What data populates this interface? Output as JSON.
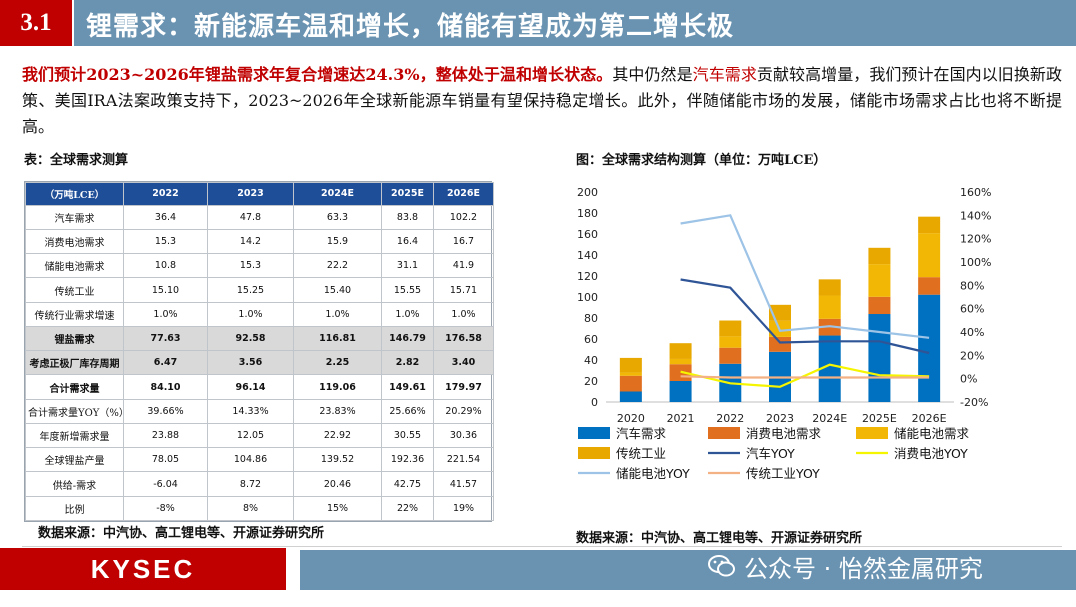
{
  "header": {
    "number": "3.1",
    "title": "锂需求：新能源车温和增长，储能有望成为第二增长极"
  },
  "intro": {
    "bold_red": "我们预计2023~2026年锂盐需求年复合增速达24.3%，整体处于温和增长状态。",
    "text_a": "其中仍然是",
    "highlight": "汽车需求",
    "text_b": "贡献较高增量，我们预计在国内以旧换新政策、美国IRA法案政策支持下，2023~2026年全球新能源车销量有望保持稳定增长。此外，伴随储能市场的发展，储能市场需求占比也将不断提高。"
  },
  "table_caption": "表：全球需求测算",
  "chart_caption": "图：全球需求结构测算（单位：万吨LCE）",
  "table": {
    "headers": [
      "（万吨LCE）",
      "2022",
      "2023",
      "2024E",
      "2025E",
      "2026E"
    ],
    "rows": [
      [
        "汽车需求",
        "36.4",
        "47.8",
        "63.3",
        "83.8",
        "102.2"
      ],
      [
        "消费电池需求",
        "15.3",
        "14.2",
        "15.9",
        "16.4",
        "16.7"
      ],
      [
        "储能电池需求",
        "10.8",
        "15.3",
        "22.2",
        "31.1",
        "41.9"
      ],
      [
        "传统工业",
        "15.10",
        "15.25",
        "15.40",
        "15.55",
        "15.71"
      ],
      [
        "传统行业需求增速",
        "1.0%",
        "1.0%",
        "1.0%",
        "1.0%",
        "1.0%"
      ],
      [
        "锂盐需求",
        "77.63",
        "92.58",
        "116.81",
        "146.79",
        "176.58"
      ],
      [
        "考虑正极厂库存周期",
        "6.47",
        "3.56",
        "2.25",
        "2.82",
        "3.40"
      ],
      [
        "合计需求量",
        "84.10",
        "96.14",
        "119.06",
        "149.61",
        "179.97"
      ],
      [
        "合计需求量YOY（%）",
        "39.66%",
        "14.33%",
        "23.83%",
        "25.66%",
        "20.29%"
      ],
      [
        "年度新增需求量",
        "23.88",
        "12.05",
        "22.92",
        "30.55",
        "30.36"
      ],
      [
        "全球锂盐产量",
        "78.05",
        "104.86",
        "139.52",
        "192.36",
        "221.54"
      ],
      [
        "供给-需求",
        "-6.04",
        "8.72",
        "20.46",
        "42.75",
        "41.57"
      ],
      [
        "比例",
        "-8%",
        "8%",
        "15%",
        "22%",
        "19%"
      ]
    ]
  },
  "source_left": "数据来源：中汽协、高工锂电等、开源证券研究所",
  "source_right": "数据来源：中汽协、高工锂电等、开源证券研究所",
  "chart_data": {
    "type": "bar",
    "stacked": true,
    "categories": [
      "2020",
      "2021",
      "2022",
      "2023",
      "2024E",
      "2025E",
      "2026E"
    ],
    "ylim": [
      0,
      200
    ],
    "yticks": [
      "0",
      "20",
      "40",
      "60",
      "80",
      "100",
      "120",
      "140",
      "160",
      "180",
      "200"
    ],
    "y2lim": [
      -20,
      160
    ],
    "y2ticks": [
      "-20%",
      "0%",
      "20%",
      "40%",
      "60%",
      "80%",
      "100%",
      "120%",
      "140%",
      "160%"
    ],
    "bar_series": [
      {
        "name": "汽车需求",
        "color": "#0070c0",
        "values": [
          10,
          20,
          36.4,
          47.8,
          63.3,
          83.8,
          102.2
        ]
      },
      {
        "name": "消费电池需求",
        "color": "#e07020",
        "values": [
          15,
          16,
          15.3,
          14.2,
          15.9,
          16.4,
          16.7
        ]
      },
      {
        "name": "储能电池需求",
        "color": "#f2b705",
        "values": [
          3,
          5,
          10.8,
          15.3,
          22.2,
          31.1,
          41.9
        ]
      },
      {
        "name": "传统工业",
        "color": "#e8a800",
        "values": [
          14,
          15,
          15.1,
          15.25,
          15.4,
          15.55,
          15.71
        ]
      }
    ],
    "line_series": [
      {
        "name": "汽车YOY",
        "color": "#2f5597",
        "values": [
          null,
          85,
          78,
          31,
          32,
          32,
          22
        ]
      },
      {
        "name": "消费电池YOY",
        "color": "#f5f500",
        "values": [
          null,
          6,
          -4,
          -7,
          12,
          3,
          2
        ]
      },
      {
        "name": "储能电池YOY",
        "color": "#9dc3e6",
        "values": [
          null,
          133,
          140,
          41,
          45,
          40,
          35
        ]
      },
      {
        "name": "传统工业YOY",
        "color": "#f4b183",
        "values": [
          null,
          2,
          1,
          1,
          1,
          1,
          1
        ]
      }
    ],
    "legend": [
      "汽车需求",
      "消费电池需求",
      "储能电池需求",
      "传统工业",
      "汽车YOY",
      "消费电池YOY",
      "储能电池YOY",
      "传统工业YOY"
    ]
  },
  "footer": {
    "logo": "KYSEC",
    "watermark": "公众号 · 怡然金属研究"
  }
}
